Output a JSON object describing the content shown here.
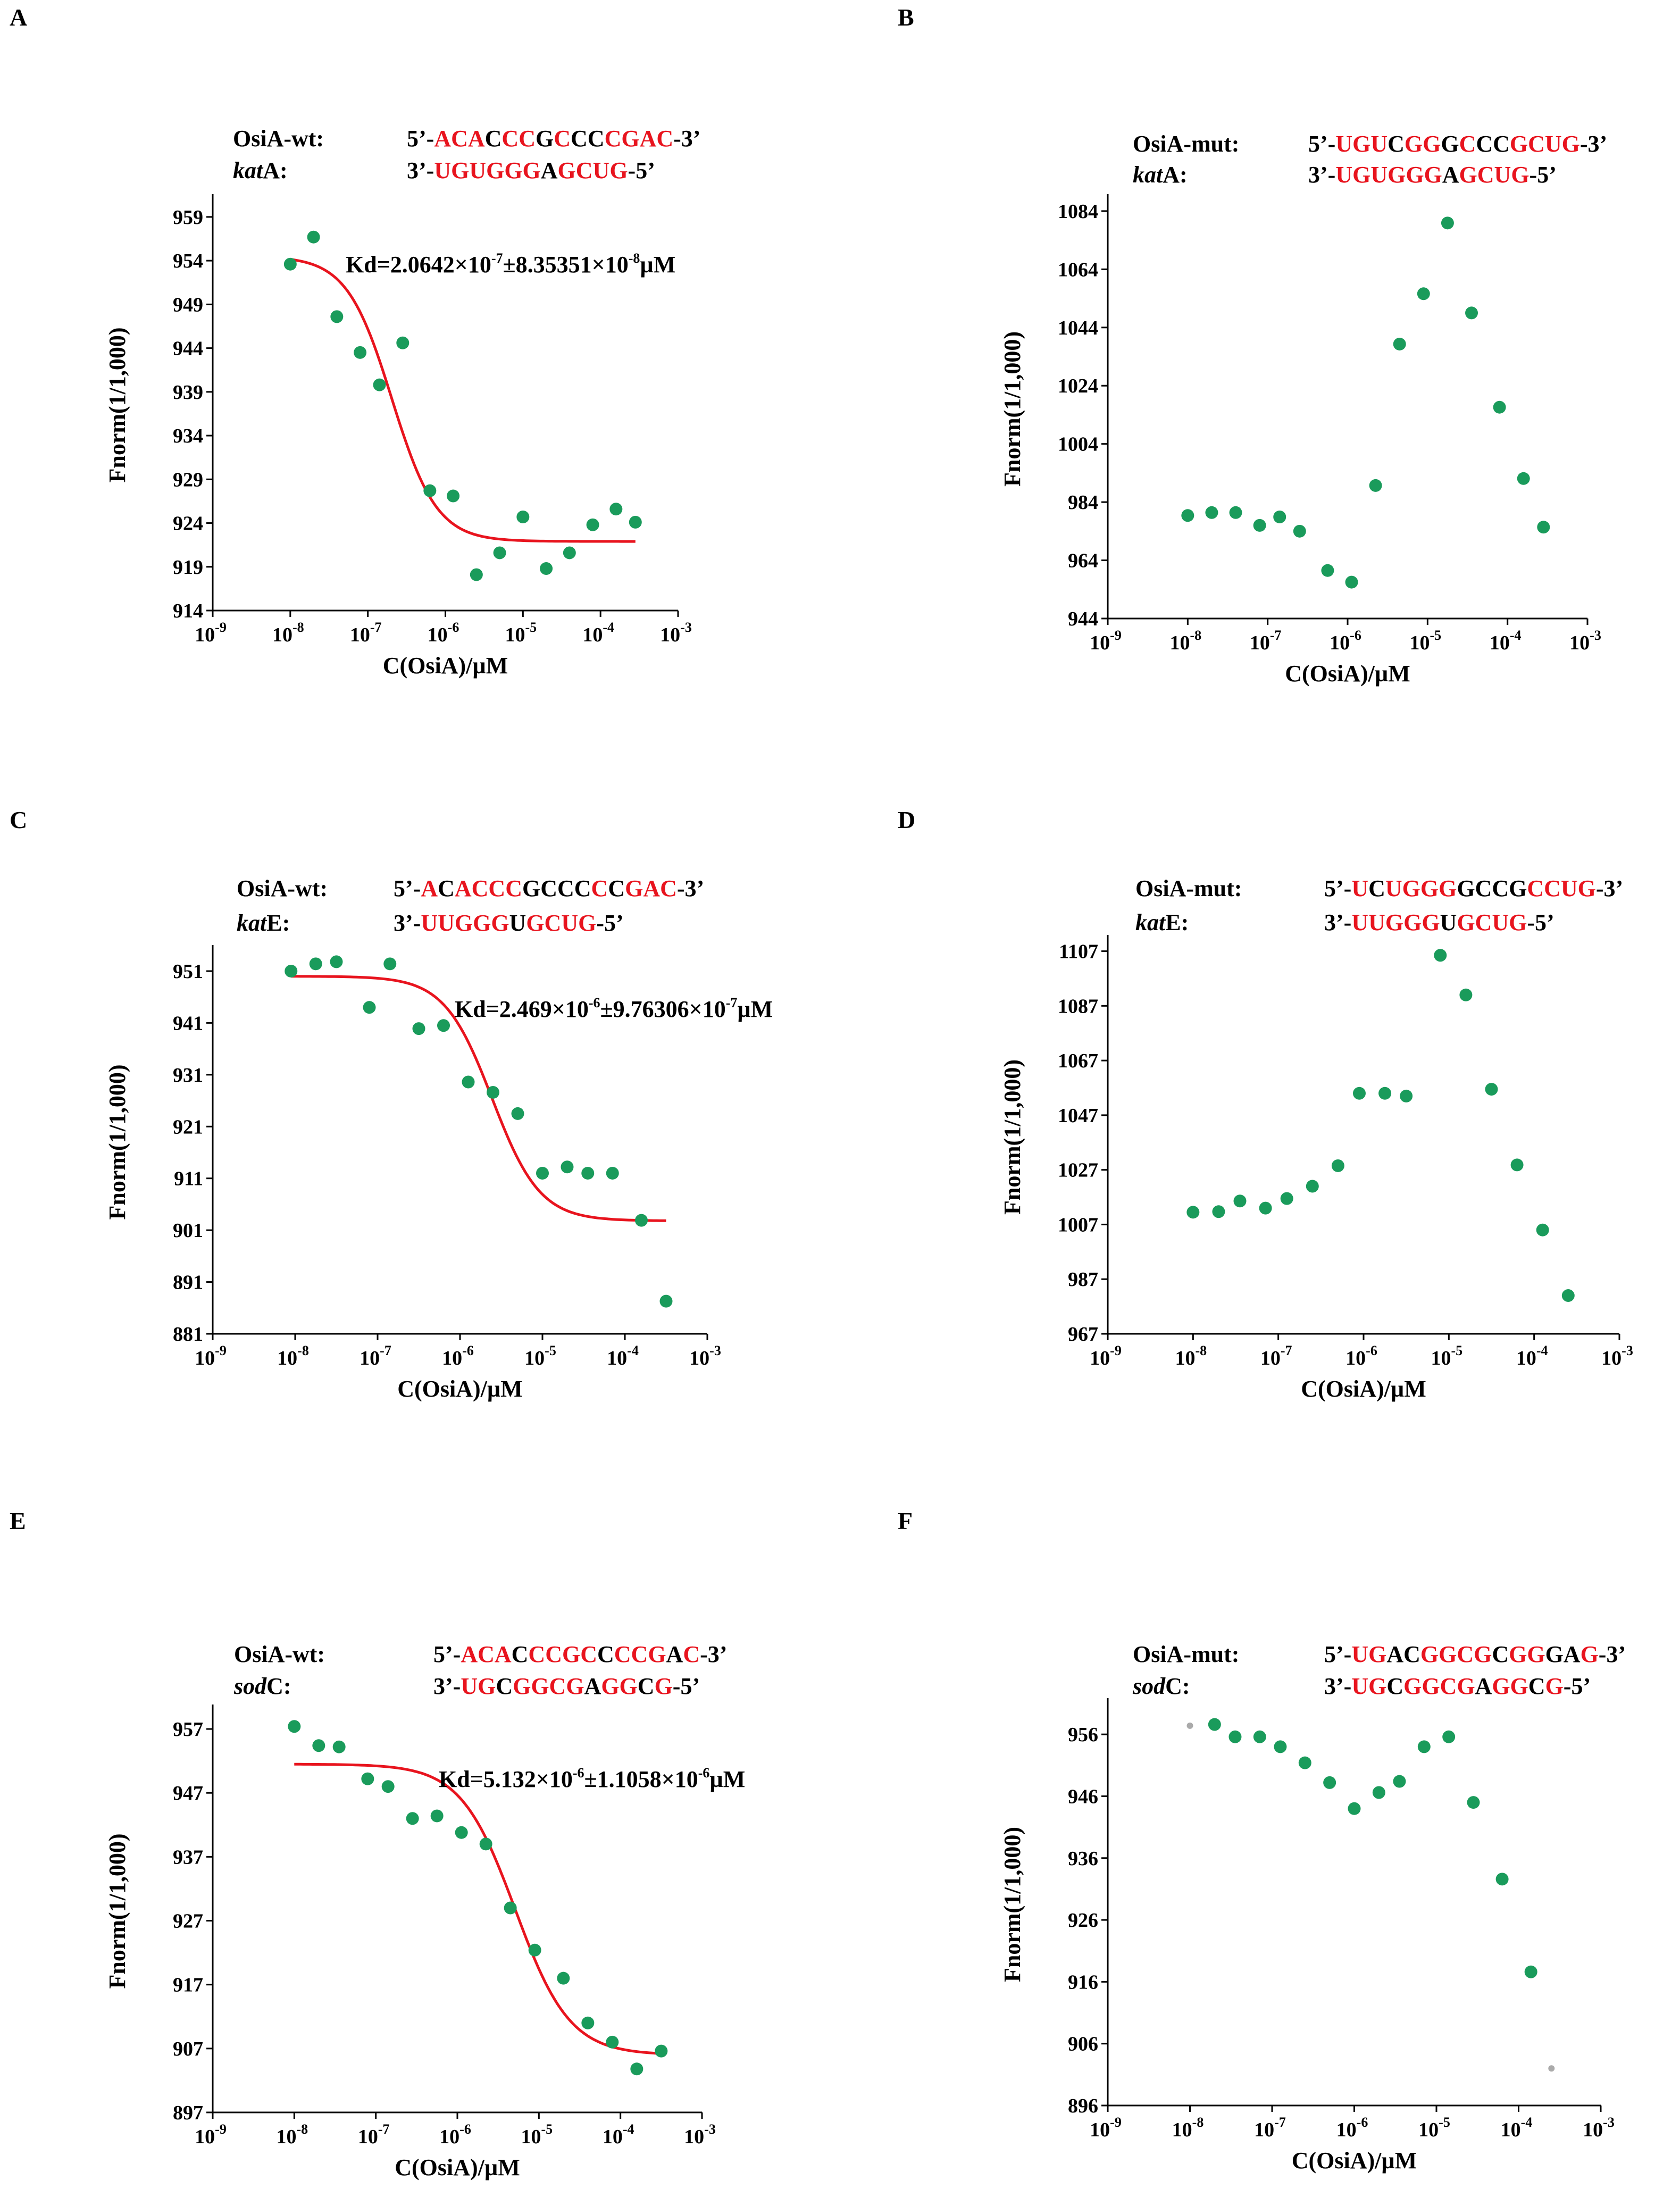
{
  "chart_data": [
    {
      "panel": "A",
      "type": "scatter",
      "fit": "sigmoid",
      "xlabel": "C(OsiA)/µM",
      "ylabel": "Fnorm(1/1,000)",
      "xlim_log10": [
        -9,
        -3
      ],
      "ylim": [
        914,
        961
      ],
      "yticks": [
        914,
        919,
        924,
        929,
        934,
        939,
        944,
        949,
        954,
        959
      ],
      "xticks_exp": [
        -9,
        -8,
        -7,
        -6,
        -5,
        -4,
        -3
      ],
      "seq_label1": "OsiA-wt:",
      "seq1": [
        [
          "5’-",
          "k"
        ],
        [
          "ACA",
          "r"
        ],
        [
          "C",
          "k"
        ],
        [
          "CC",
          "r"
        ],
        [
          "G",
          "k"
        ],
        [
          "C",
          "r"
        ],
        [
          "CC",
          "k"
        ],
        [
          "CGAC",
          "r"
        ],
        [
          "-3’",
          "k"
        ]
      ],
      "seq_label2": "katA:",
      "seq_label2_italic": "kat",
      "seq2": [
        [
          "3’-",
          "k"
        ],
        [
          "UGUGGG",
          "r"
        ],
        [
          "A",
          "k"
        ],
        [
          "GCUG",
          "r"
        ],
        [
          "-5’",
          "k"
        ]
      ],
      "kd": [
        "Kd=2.0642×10",
        "-7",
        "±8.35351×10",
        "-8",
        "µM"
      ],
      "points": [
        [
          -8.0,
          953.6
        ],
        [
          -7.7,
          956.7
        ],
        [
          -7.4,
          947.6
        ],
        [
          -7.1,
          943.5
        ],
        [
          -6.85,
          939.8
        ],
        [
          -6.55,
          944.6
        ],
        [
          -6.2,
          927.7
        ],
        [
          -5.9,
          927.1
        ],
        [
          -5.6,
          918.1
        ],
        [
          -5.3,
          920.6
        ],
        [
          -5.0,
          924.7
        ],
        [
          -4.7,
          918.8
        ],
        [
          -4.4,
          920.6
        ],
        [
          -4.1,
          923.8
        ],
        [
          -3.8,
          925.6
        ],
        [
          -3.55,
          924.1
        ]
      ],
      "curve": {
        "top": 954.5,
        "bottom": 921.9,
        "logkd": -6.69,
        "hill": 1.5,
        "from": -8.0,
        "to": -3.55
      }
    },
    {
      "panel": "B",
      "type": "scatter",
      "xlabel": "C(OsiA)/µM",
      "ylabel": "Fnorm(1/1,000)",
      "xlim_log10": [
        -9,
        -3
      ],
      "ylim": [
        944,
        1088
      ],
      "yticks": [
        944,
        964,
        984,
        1004,
        1024,
        1044,
        1064,
        1084
      ],
      "xticks_exp": [
        -9,
        -8,
        -7,
        -6,
        -5,
        -4,
        -3
      ],
      "seq_label1": "OsiA-mut:",
      "seq1": [
        [
          "5’-",
          "k"
        ],
        [
          "UGU",
          "r"
        ],
        [
          "C",
          "k"
        ],
        [
          "GG",
          "r"
        ],
        [
          "G",
          "k"
        ],
        [
          "C",
          "r"
        ],
        [
          "CC",
          "k"
        ],
        [
          "GCUG",
          "r"
        ],
        [
          "-3’",
          "k"
        ]
      ],
      "seq_label2": "katA:",
      "seq_label2_italic": "kat",
      "seq2": [
        [
          "3’-",
          "k"
        ],
        [
          "UGUGGG",
          "r"
        ],
        [
          "A",
          "k"
        ],
        [
          "GCUG",
          "r"
        ],
        [
          "-5’",
          "k"
        ]
      ],
      "points": [
        [
          -8.0,
          979.4
        ],
        [
          -7.7,
          980.4
        ],
        [
          -7.4,
          980.4
        ],
        [
          -7.1,
          976.0
        ],
        [
          -6.85,
          978.9
        ],
        [
          -6.6,
          974.0
        ],
        [
          -6.25,
          960.5
        ],
        [
          -5.95,
          956.5
        ],
        [
          -5.65,
          989.7
        ],
        [
          -5.35,
          1038.3
        ],
        [
          -5.05,
          1055.6
        ],
        [
          -4.75,
          1079.9
        ],
        [
          -4.45,
          1049.0
        ],
        [
          -4.1,
          1016.6
        ],
        [
          -3.8,
          992.1
        ],
        [
          -3.55,
          975.4
        ]
      ]
    },
    {
      "panel": "C",
      "type": "scatter",
      "fit": "sigmoid",
      "xlabel": "C(OsiA)/µM",
      "ylabel": "Fnorm(1/1,000)",
      "xlim_log10": [
        -9,
        -3
      ],
      "ylim": [
        881,
        955
      ],
      "yticks": [
        881,
        891,
        901,
        911,
        921,
        931,
        941,
        951
      ],
      "xticks_exp": [
        -9,
        -8,
        -7,
        -6,
        -5,
        -4,
        -3
      ],
      "seq_label1": "OsiA-wt:",
      "seq1": [
        [
          "5’-",
          "k"
        ],
        [
          "A",
          "r"
        ],
        [
          "C",
          "k"
        ],
        [
          "ACCC",
          "r"
        ],
        [
          "GCCC",
          "k"
        ],
        [
          "C",
          "r"
        ],
        [
          "C",
          "k"
        ],
        [
          "GAC",
          "r"
        ],
        [
          "-3’",
          "k"
        ]
      ],
      "seq_label2": "katE:",
      "seq_label2_italic": "kat",
      "seq2": [
        [
          "3’-",
          "k"
        ],
        [
          "UUGGG",
          "r"
        ],
        [
          "U",
          "k"
        ],
        [
          "GCUG",
          "r"
        ],
        [
          "-5’",
          "k"
        ]
      ],
      "kd": [
        "Kd=2.469×10",
        "-6",
        "±9.76306×10",
        "-7",
        "µM"
      ],
      "points": [
        [
          -8.05,
          951.0
        ],
        [
          -7.75,
          952.4
        ],
        [
          -7.5,
          952.8
        ],
        [
          -7.1,
          944.0
        ],
        [
          -6.85,
          952.4
        ],
        [
          -6.5,
          939.9
        ],
        [
          -6.2,
          940.5
        ],
        [
          -5.9,
          929.6
        ],
        [
          -5.6,
          927.6
        ],
        [
          -5.3,
          923.5
        ],
        [
          -5.0,
          912.0
        ],
        [
          -4.7,
          913.2
        ],
        [
          -4.45,
          912.0
        ],
        [
          -4.15,
          912.0
        ],
        [
          -3.8,
          902.9
        ],
        [
          -3.5,
          887.3
        ]
      ],
      "curve": {
        "top": 950.0,
        "bottom": 902.8,
        "logkd": -5.61,
        "hill": 1.5,
        "from": -8.05,
        "to": -3.5
      }
    },
    {
      "panel": "D",
      "type": "scatter",
      "xlabel": "C(OsiA)/µM",
      "ylabel": "Fnorm(1/1,000)",
      "xlim_log10": [
        -9,
        -3
      ],
      "ylim": [
        967,
        1111
      ],
      "yticks": [
        967,
        987,
        1007,
        1027,
        1047,
        1067,
        1087,
        1107
      ],
      "xticks_exp": [
        -9,
        -8,
        -7,
        -6,
        -5,
        -4,
        -3
      ],
      "seq_label1": "OsiA-mut:",
      "seq1": [
        [
          "5’-",
          "k"
        ],
        [
          "U",
          "r"
        ],
        [
          "C",
          "k"
        ],
        [
          "UGGG",
          "r"
        ],
        [
          "GCCG",
          "k"
        ],
        [
          "C",
          "r"
        ],
        [
          "CUG",
          "r"
        ],
        [
          "-3’",
          "k"
        ]
      ],
      "seq_label2": "katE:",
      "seq_label2_italic": "kat",
      "seq2": [
        [
          "3’-",
          "k"
        ],
        [
          "UUGGG",
          "r"
        ],
        [
          "U",
          "k"
        ],
        [
          "GCUG",
          "r"
        ],
        [
          "-5’",
          "k"
        ]
      ],
      "points": [
        [
          -8.0,
          1011.5
        ],
        [
          -7.7,
          1011.7
        ],
        [
          -7.45,
          1015.6
        ],
        [
          -7.15,
          1013.0
        ],
        [
          -6.9,
          1016.5
        ],
        [
          -6.6,
          1021.0
        ],
        [
          -6.3,
          1028.5
        ],
        [
          -6.05,
          1055.0
        ],
        [
          -5.75,
          1055.0
        ],
        [
          -5.5,
          1054.0
        ],
        [
          -5.1,
          1105.5
        ],
        [
          -4.8,
          1091.0
        ],
        [
          -4.5,
          1056.5
        ],
        [
          -4.2,
          1028.8
        ],
        [
          -3.9,
          1005.0
        ],
        [
          -3.6,
          981.0
        ]
      ]
    },
    {
      "panel": "E",
      "type": "scatter",
      "fit": "sigmoid",
      "xlabel": "C(OsiA)/µM",
      "ylabel": "Fnorm(1/1,000)",
      "xlim_log10": [
        -9,
        -3
      ],
      "ylim": [
        897,
        960
      ],
      "yticks": [
        897,
        907,
        917,
        927,
        937,
        947,
        957
      ],
      "xticks_exp": [
        -9,
        -8,
        -7,
        -6,
        -5,
        -4,
        -3
      ],
      "seq_label1": "OsiA-wt:",
      "seq1": [
        [
          "5’-",
          "k"
        ],
        [
          "ACA",
          "r"
        ],
        [
          "C",
          "k"
        ],
        [
          "CCGC",
          "r"
        ],
        [
          "C",
          "k"
        ],
        [
          "CCG",
          "r"
        ],
        [
          "A",
          "k"
        ],
        [
          "C",
          "r"
        ],
        [
          "-3’",
          "k"
        ]
      ],
      "seq_label2": "sodC:",
      "seq_label2_italic": "sod",
      "seq2": [
        [
          "3’-",
          "k"
        ],
        [
          "UG",
          "r"
        ],
        [
          "C",
          "k"
        ],
        [
          "GGCG",
          "r"
        ],
        [
          "A",
          "k"
        ],
        [
          "GG",
          "r"
        ],
        [
          "C",
          "k"
        ],
        [
          "G",
          "r"
        ],
        [
          "-5’",
          "k"
        ]
      ],
      "kd": [
        "Kd=5.132×10",
        "-6",
        "±1.1058×10",
        "-6",
        "µM"
      ],
      "points": [
        [
          -8.0,
          957.4
        ],
        [
          -7.7,
          954.4
        ],
        [
          -7.45,
          954.2
        ],
        [
          -7.1,
          949.2
        ],
        [
          -6.85,
          948.0
        ],
        [
          -6.55,
          943.0
        ],
        [
          -6.25,
          943.4
        ],
        [
          -5.95,
          940.8
        ],
        [
          -5.65,
          939.0
        ],
        [
          -5.35,
          929.0
        ],
        [
          -5.05,
          922.4
        ],
        [
          -4.7,
          918.0
        ],
        [
          -4.4,
          911.0
        ],
        [
          -4.1,
          908.0
        ],
        [
          -3.8,
          903.8
        ],
        [
          -3.5,
          906.6
        ]
      ],
      "curve": {
        "top": 951.5,
        "bottom": 906.0,
        "logkd": -5.29,
        "hill": 1.3,
        "from": -8.0,
        "to": -3.5
      }
    },
    {
      "panel": "F",
      "type": "scatter",
      "xlabel": "C(OsiA)/µM",
      "ylabel": "Fnorm(1/1,000)",
      "xlim_log10": [
        -9,
        -3
      ],
      "ylim": [
        896,
        961
      ],
      "yticks": [
        896,
        906,
        916,
        926,
        936,
        946,
        956
      ],
      "xticks_exp": [
        -9,
        -8,
        -7,
        -6,
        -5,
        -4,
        -3
      ],
      "seq_label1": "OsiA-mut:",
      "seq1": [
        [
          "5’-",
          "k"
        ],
        [
          "UG",
          "r"
        ],
        [
          "AC",
          "k"
        ],
        [
          "GGCG",
          "r"
        ],
        [
          "C",
          "k"
        ],
        [
          "GG",
          "r"
        ],
        [
          "GA",
          "k"
        ],
        [
          "G",
          "r"
        ],
        [
          "-3’",
          "k"
        ]
      ],
      "seq_label2": "sodC:",
      "seq_label2_italic": "sod",
      "seq2": [
        [
          "3’-",
          "k"
        ],
        [
          "UG",
          "r"
        ],
        [
          "C",
          "k"
        ],
        [
          "GGCG",
          "r"
        ],
        [
          "A",
          "k"
        ],
        [
          "GG",
          "r"
        ],
        [
          "C",
          "k"
        ],
        [
          "G",
          "r"
        ],
        [
          "-5’",
          "k"
        ]
      ],
      "points": [
        [
          -7.7,
          957.6
        ],
        [
          -7.45,
          955.6
        ],
        [
          -7.15,
          955.6
        ],
        [
          -6.9,
          954.0
        ],
        [
          -6.6,
          951.4
        ],
        [
          -6.3,
          948.2
        ],
        [
          -6.0,
          944.0
        ],
        [
          -5.7,
          946.6
        ],
        [
          -5.45,
          948.4
        ],
        [
          -5.15,
          954.0
        ],
        [
          -4.85,
          955.6
        ],
        [
          -4.55,
          945.0
        ],
        [
          -4.2,
          932.6
        ],
        [
          -3.85,
          917.6
        ]
      ],
      "grey_points": [
        [
          -8.0,
          957.4
        ],
        [
          -3.6,
          902.0
        ]
      ]
    }
  ],
  "colors": {
    "dot": "#1a9b5b",
    "fit": "#e8141e",
    "red_text": "#e8141e",
    "grey_dot": "#aaaaaa"
  }
}
